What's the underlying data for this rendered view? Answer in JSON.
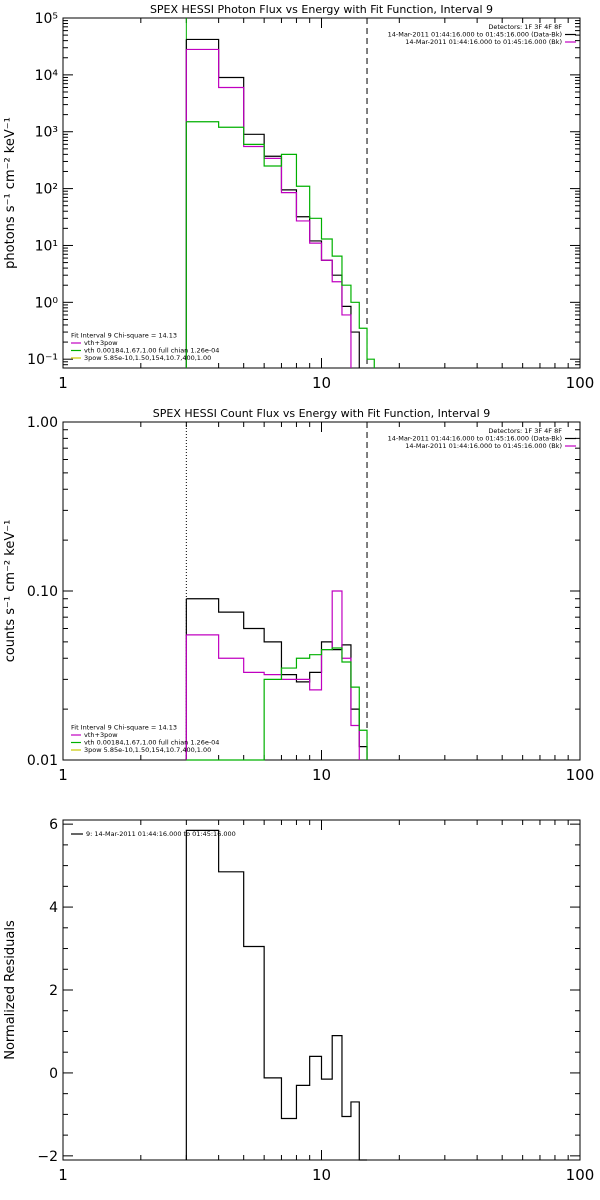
{
  "chart_data": [
    {
      "type": "line",
      "title": "SPEX HESSI Photon Flux vs Energy with Fit Function, Interval 9",
      "xlabel": "",
      "ylabel": "photons s⁻¹ cm⁻² keV⁻¹",
      "x_scale": "log",
      "y_scale": "log",
      "xlim": [
        1,
        100
      ],
      "ylim": [
        0.07,
        100000
      ],
      "x_ticks": [
        {
          "v": 1,
          "label": "1"
        },
        {
          "v": 10,
          "label": "10"
        },
        {
          "v": 100,
          "label": "100"
        }
      ],
      "y_ticks": [
        {
          "v": 0.1,
          "label": "10⁻¹"
        },
        {
          "v": 1,
          "label": "10⁰"
        },
        {
          "v": 10,
          "label": "10¹"
        },
        {
          "v": 100,
          "label": "10²"
        },
        {
          "v": 1000,
          "label": "10³"
        },
        {
          "v": 10000,
          "label": "10⁴"
        },
        {
          "v": 100000,
          "label": "10⁵"
        }
      ],
      "vlines": [
        {
          "x": 3,
          "style": "solid",
          "color": "#00b000"
        },
        {
          "x": 15,
          "style": "dashed",
          "color": "#000000"
        }
      ],
      "legend_top_right": [
        {
          "text": "Detectors: 1F 3F 4F 8F",
          "color": ""
        },
        {
          "text": "14-Mar-2011 01:44:16.000 to 01:45:16.000 (Data-Bk)",
          "color": "#000000"
        },
        {
          "text": "14-Mar-2011 01:44:16.000 to 01:45:16.000 (Bk)",
          "color": "#c000c0"
        }
      ],
      "legend_bottom_left": [
        {
          "text": "Fit Interval 9   Chi-square = 14.13",
          "color": ""
        },
        {
          "text": "vth+3pow",
          "color": "#c000c0"
        },
        {
          "text": "vth 0.00184,1.67,1.00  full chian 1.26e-04",
          "color": "#00b000"
        },
        {
          "text": "3pow 5.85e-10,1.50,154,10.7,400,1.00",
          "color": "#c8c800"
        }
      ],
      "series": [
        {
          "color": "#000000",
          "edges": [
            3,
            4,
            5,
            6,
            7,
            8,
            9,
            10,
            11,
            12,
            13,
            14
          ],
          "values": [
            42000,
            9000,
            900,
            370,
            95,
            32,
            12,
            5.5,
            3,
            0.85,
            0.3
          ]
        },
        {
          "color": "#c000c0",
          "edges": [
            3,
            4,
            5,
            6,
            7,
            8,
            9,
            10,
            11,
            12,
            13
          ],
          "values": [
            28000,
            6000,
            550,
            340,
            85,
            27,
            11,
            5.5,
            2.3,
            0.6
          ]
        },
        {
          "color": "#00b000",
          "edges": [
            3,
            4,
            5,
            6,
            7,
            8,
            9,
            10,
            11,
            12,
            13,
            14,
            15,
            16
          ],
          "values": [
            1500,
            1200,
            600,
            250,
            400,
            110,
            30,
            13,
            6.5,
            2,
            1,
            0.35,
            0.1
          ]
        }
      ]
    },
    {
      "type": "line",
      "title": "SPEX HESSI Count Flux vs Energy with Fit Function, Interval 9",
      "xlabel": "",
      "ylabel": "counts s⁻¹ cm⁻² keV⁻¹",
      "x_scale": "log",
      "y_scale": "log",
      "xlim": [
        1,
        100
      ],
      "ylim": [
        0.01,
        1
      ],
      "x_ticks": [
        {
          "v": 1,
          "label": "1"
        },
        {
          "v": 10,
          "label": "10"
        },
        {
          "v": 100,
          "label": "100"
        }
      ],
      "y_ticks": [
        {
          "v": 0.01,
          "label": "0.01"
        },
        {
          "v": 0.1,
          "label": "0.10"
        },
        {
          "v": 1,
          "label": "1.00"
        }
      ],
      "vlines": [
        {
          "x": 3,
          "style": "dotted",
          "color": "#000000"
        },
        {
          "x": 15,
          "style": "dashed",
          "color": "#000000"
        }
      ],
      "legend_top_right": [
        {
          "text": "Detectors: 1F 3F 4F 8F",
          "color": ""
        },
        {
          "text": "14-Mar-2011 01:44:16.000 to 01:45:16.000 (Data-Bk)",
          "color": "#000000"
        },
        {
          "text": "14-Mar-2011 01:44:16.000 to 01:45:16.000 (Bk)",
          "color": "#c000c0"
        }
      ],
      "legend_bottom_left": [
        {
          "text": "Fit Interval 9   Chi-square = 14.13",
          "color": ""
        },
        {
          "text": "vth+3pow",
          "color": "#c000c0"
        },
        {
          "text": "vth 0.00184,1.67,1.00  full chian 1.26e-04",
          "color": "#00b000"
        },
        {
          "text": "3pow 5.85e-10,1.50,154,10.7,400,1.00",
          "color": "#c8c800"
        }
      ],
      "series": [
        {
          "color": "#000000",
          "edges": [
            3,
            4,
            5,
            6,
            7,
            8,
            9,
            10,
            11,
            12,
            13,
            14,
            15
          ],
          "values": [
            0.09,
            0.075,
            0.06,
            0.05,
            0.032,
            0.029,
            0.033,
            0.05,
            0.045,
            0.048,
            0.02,
            0.012
          ]
        },
        {
          "color": "#c000c0",
          "edges": [
            3,
            4,
            5,
            6,
            7,
            8,
            9,
            10,
            11,
            12,
            13,
            14
          ],
          "values": [
            0.055,
            0.04,
            0.033,
            0.032,
            0.03,
            0.03,
            0.026,
            0.045,
            0.1,
            0.04,
            0.016
          ]
        },
        {
          "color": "#00b000",
          "edges": [
            3,
            4,
            5,
            6,
            7,
            8,
            9,
            10,
            11,
            12,
            13,
            14,
            15
          ],
          "values": [
            0.01,
            0.01,
            0.01,
            0.03,
            0.035,
            0.04,
            0.042,
            0.045,
            0.046,
            0.038,
            0.027,
            0.015
          ]
        }
      ]
    },
    {
      "type": "line",
      "title": "",
      "xlabel": "",
      "ylabel": "Normalized Residuals",
      "x_scale": "log",
      "y_scale": "linear",
      "xlim": [
        1,
        100
      ],
      "ylim": [
        -2.1,
        6.1
      ],
      "x_ticks": [
        {
          "v": 1,
          "label": "1"
        },
        {
          "v": 10,
          "label": "10"
        },
        {
          "v": 100,
          "label": "100"
        }
      ],
      "y_ticks": [
        {
          "v": -2,
          "label": "−2"
        },
        {
          "v": 0,
          "label": "0"
        },
        {
          "v": 2,
          "label": "2"
        },
        {
          "v": 4,
          "label": "4"
        },
        {
          "v": 6,
          "label": "6"
        }
      ],
      "vlines": [],
      "legend_top_left": [
        {
          "text": "9: 14-Mar-2011 01:44:16.000 to 01:45:16.000",
          "color": "#000000"
        }
      ],
      "series": [
        {
          "color": "#000000",
          "edges": [
            3,
            4,
            5,
            6,
            7,
            8,
            9,
            10,
            11,
            12,
            13,
            14,
            15
          ],
          "values": [
            5.85,
            4.85,
            3.05,
            -0.12,
            -1.1,
            -0.3,
            0.4,
            -0.15,
            0.9,
            -1.05,
            -0.7,
            -2.1
          ],
          "drop_left": true
        }
      ]
    }
  ]
}
